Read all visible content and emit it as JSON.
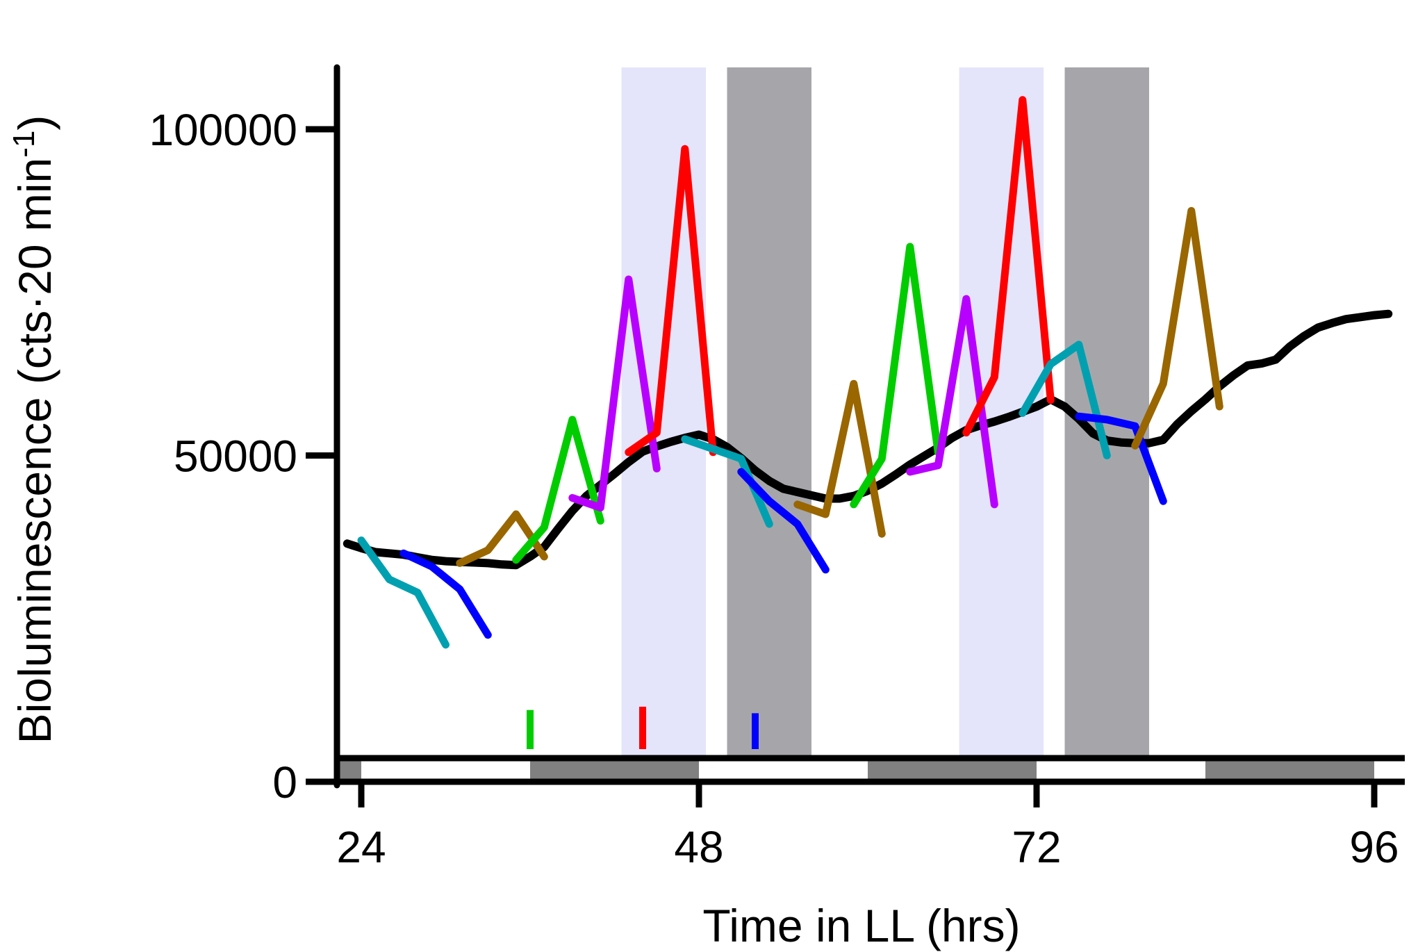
{
  "chart_data": {
    "type": "line",
    "xlabel": "Time in LL (hrs)",
    "ylabel": {
      "main": "Bioluminescence (cts·20 min",
      "superscript": "-1",
      "close": ")"
    },
    "xticks": [
      24,
      48,
      72,
      96
    ],
    "xtick_labels": [
      "24",
      "48",
      "72",
      "96"
    ],
    "yticks": [
      0,
      50000,
      100000
    ],
    "ytick_labels": [
      "0",
      "50000",
      "100000"
    ],
    "xlim": [
      22,
      97
    ],
    "ylim": [
      0,
      110000
    ],
    "grid": false,
    "legend": "none",
    "shaded_regions": [
      {
        "x0": 42.5,
        "x1": 48.5,
        "color": "#e4e4fb",
        "meaning": "light-purple band"
      },
      {
        "x0": 50.0,
        "x1": 56.0,
        "color": "#a6a6aa",
        "meaning": "grey band"
      },
      {
        "x0": 66.5,
        "x1": 72.5,
        "color": "#e4e4fb",
        "meaning": "light-purple band"
      },
      {
        "x0": 74.0,
        "x1": 80.0,
        "color": "#a6a6aa",
        "meaning": "grey band"
      }
    ],
    "day_night_bar": [
      {
        "x0": 22.2,
        "x1": 24,
        "color": "#808080"
      },
      {
        "x0": 36,
        "x1": 48,
        "color": "#808080"
      },
      {
        "x0": 60,
        "x1": 72,
        "color": "#808080"
      },
      {
        "x0": 84,
        "x1": 96,
        "color": "#808080"
      }
    ],
    "event_markers": [
      {
        "x": 36,
        "y_from": 5000,
        "y_to": 11000,
        "color": "#00cc00"
      },
      {
        "x": 44,
        "y_from": 5000,
        "y_to": 11500,
        "color": "#ff0000"
      },
      {
        "x": 52,
        "y_from": 5000,
        "y_to": 10500,
        "color": "#0000ff"
      }
    ],
    "series": [
      {
        "color": "#000000",
        "x": [
          23,
          24,
          25,
          26,
          27,
          28,
          29,
          30,
          31,
          32,
          33,
          34,
          35,
          36,
          37,
          38,
          39,
          40,
          41,
          42,
          43,
          44,
          45,
          46,
          47,
          48,
          49,
          50,
          51,
          52,
          53,
          54,
          55,
          56,
          57,
          58,
          59,
          60,
          61,
          62,
          63,
          64,
          65,
          66,
          67,
          68,
          69,
          70,
          71,
          72,
          73,
          74,
          75,
          76,
          77,
          78,
          79,
          80,
          81,
          82,
          83,
          84,
          85,
          86,
          87,
          88,
          89,
          90,
          91,
          92,
          93,
          94,
          95,
          96,
          97
        ],
        "y": [
          36500,
          35800,
          35200,
          35000,
          34800,
          34400,
          34000,
          33800,
          33700,
          33600,
          33500,
          33300,
          33200,
          34500,
          36000,
          38800,
          41500,
          43800,
          45500,
          47200,
          49000,
          50600,
          51400,
          52100,
          52700,
          53200,
          52500,
          51300,
          49600,
          47700,
          46100,
          44900,
          44400,
          43900,
          43400,
          43400,
          43800,
          44600,
          45700,
          47100,
          48600,
          49900,
          51200,
          52700,
          53900,
          54600,
          55200,
          55900,
          56700,
          57500,
          58600,
          57500,
          55600,
          53400,
          52300,
          52000,
          51900,
          51900,
          52400,
          54800,
          56800,
          58600,
          60600,
          62300,
          63800,
          64100,
          64700,
          66700,
          68300,
          69600,
          70300,
          70900,
          71200,
          71500,
          71700
        ]
      },
      {
        "color": "#00a0b0",
        "x": [
          24,
          26,
          28,
          30
        ],
        "y": [
          37000,
          31000,
          29000,
          21000
        ]
      },
      {
        "color": "#0000ff",
        "x": [
          27,
          29,
          31,
          33
        ],
        "y": [
          35000,
          33000,
          29500,
          22500
        ]
      },
      {
        "color": "#996600",
        "x": [
          31,
          33,
          35,
          37
        ],
        "y": [
          33500,
          35500,
          41000,
          34500
        ]
      },
      {
        "color": "#00cc00",
        "x": [
          35,
          37,
          39,
          41
        ],
        "y": [
          34000,
          39000,
          55500,
          40000
        ]
      },
      {
        "color": "#b800ff",
        "x": [
          39,
          41,
          43,
          45
        ],
        "y": [
          43500,
          42000,
          77000,
          48000
        ]
      },
      {
        "color": "#ff0000",
        "x": [
          43,
          45,
          47,
          49
        ],
        "y": [
          50500,
          53500,
          97000,
          50500
        ]
      },
      {
        "color": "#00a0b0",
        "x": [
          47,
          49,
          51,
          53
        ],
        "y": [
          52500,
          51000,
          49500,
          39500
        ]
      },
      {
        "color": "#0000ff",
        "x": [
          51,
          53,
          55,
          57
        ],
        "y": [
          47500,
          43000,
          39500,
          32500
        ]
      },
      {
        "color": "#996600",
        "x": [
          55,
          57,
          59,
          61
        ],
        "y": [
          42500,
          41000,
          61000,
          38000
        ]
      },
      {
        "color": "#00cc00",
        "x": [
          59,
          61,
          63,
          65
        ],
        "y": [
          42500,
          49500,
          82000,
          50500
        ]
      },
      {
        "color": "#b800ff",
        "x": [
          63,
          65,
          67,
          69
        ],
        "y": [
          47500,
          48500,
          74000,
          42500
        ]
      },
      {
        "color": "#ff0000",
        "x": [
          67,
          69,
          71,
          73
        ],
        "y": [
          53500,
          62000,
          104500,
          58500
        ]
      },
      {
        "color": "#00a0b0",
        "x": [
          71,
          73,
          75,
          77
        ],
        "y": [
          56500,
          64000,
          67000,
          50000
        ]
      },
      {
        "color": "#0000ff",
        "x": [
          75,
          77,
          79,
          81
        ],
        "y": [
          56000,
          55500,
          54500,
          43000
        ]
      },
      {
        "color": "#996600",
        "x": [
          79,
          81,
          83,
          85
        ],
        "y": [
          51500,
          61000,
          87500,
          57500
        ]
      }
    ]
  }
}
